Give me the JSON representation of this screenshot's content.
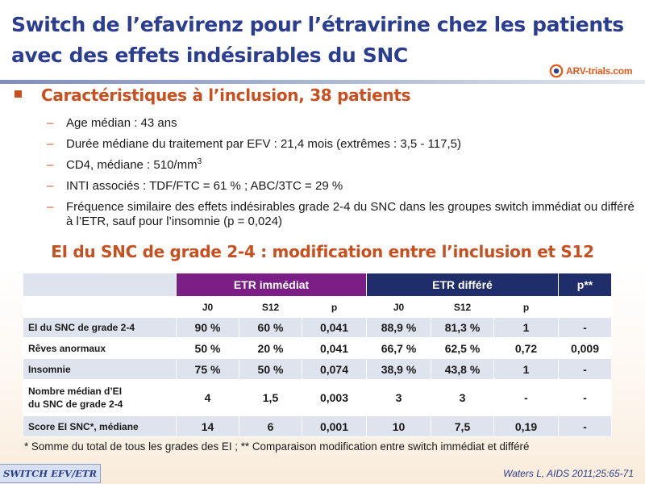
{
  "title": {
    "line1": "Switch de l’efavirenz pour l’étravirine chez les patients",
    "line2": "avec des effets indésirables du SNC"
  },
  "logo": {
    "text": "ARV-trials.com",
    "colors": {
      "orange": "#e05a1a",
      "blue": "#2b3d8f"
    }
  },
  "main_bullet": "Caractéristiques à l’inclusion, 38 patients",
  "sub_items": [
    {
      "text": "Age médian  : 43 ans"
    },
    {
      "text": "Durée médiane du traitement par EFV : 21,4 mois (extrêmes : 3,5 - 117,5)"
    },
    {
      "text": "CD4, médiane  : 510/mm",
      "sup": "3"
    },
    {
      "text": "INTI associés : TDF/FTC  = 61 % ; ABC/3TC  = 29 %"
    },
    {
      "text": "Fréquence similaire des effets indésirables grade 2-4 du SNC dans les groupes switch immédiat ou différé à l’ETR, sauf pour l’insomnie  (p = 0,024)"
    }
  ],
  "table": {
    "title": "EI du SNC de grade 2-4 : modification entre l’inclusion et S12",
    "groups": {
      "immediate": "ETR immédiat",
      "deferred": "ETR différé",
      "p": "p**"
    },
    "sub_headers": [
      "J0",
      "S12",
      "p",
      "J0",
      "S12",
      "p"
    ],
    "rows": [
      {
        "label": "EI du SNC de grade 2-4",
        "values": [
          "90 %",
          "60 %",
          "0,041",
          "88,9 %",
          "81,3 %",
          "1",
          "-"
        ]
      },
      {
        "label": "Rêves anormaux",
        "values": [
          "50 %",
          "20 %",
          "0,041",
          "66,7 %",
          "62,5 %",
          "0,72",
          "0,009"
        ]
      },
      {
        "label": "Insomnie",
        "values": [
          "75 %",
          "50 %",
          "0,074",
          "38,9 %",
          "43,8 %",
          "1",
          "-"
        ]
      },
      {
        "label_line1": "Nombre médian d’EI",
        "label_line2": "du SNC de grade 2-4",
        "values": [
          "4",
          "1,5",
          "0,003",
          "3",
          "3",
          "-",
          "-"
        ]
      },
      {
        "label": "Score EI SNC*, médiane",
        "values": [
          "14",
          "6",
          "0,001",
          "10",
          "7,5",
          "0,19",
          "-"
        ]
      }
    ],
    "colors": {
      "immediate": "#7b1f86",
      "deferred": "#1f2d6b",
      "stripe": "#dfe3ee"
    }
  },
  "footnote": "* Somme du total de tous les grades des EI ; ** Comparaison modification entre switch immédiat et différé",
  "tag": "SWITCH EFV/ETR",
  "reference": "Waters L, AIDS 2011;25:65-71",
  "colors": {
    "title": "#2b3d8f",
    "accent": "#c8501f"
  }
}
